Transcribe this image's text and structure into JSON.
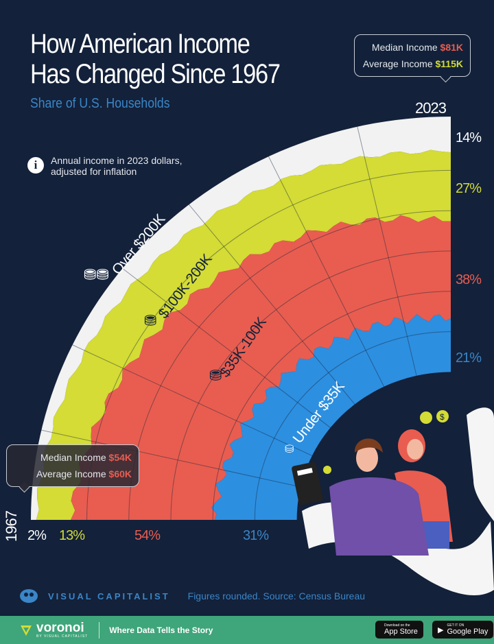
{
  "header": {
    "title_line1": "How American Income",
    "title_line2": "Has Changed Since 1967",
    "subtitle": "Share of U.S. Households",
    "note": "Annual income in 2023 dollars, adjusted for inflation",
    "note_icon": "info-icon"
  },
  "callouts": {
    "y2023": {
      "median_label": "Median Income",
      "median_value": "$81K",
      "average_label": "Average Income",
      "average_value": "$115K"
    },
    "y1967": {
      "median_label": "Median Income",
      "median_value": "$54K",
      "average_label": "Average Income",
      "average_value": "$60K"
    }
  },
  "colors": {
    "background": "#13213a",
    "over200": "#f2f2f2",
    "k100_200": "#d4dc35",
    "k35_100": "#e85d50",
    "under35": "#2d8fe0",
    "accent_blue": "#3a86c8",
    "footer": "#3fa57a"
  },
  "chart_data": {
    "type": "area",
    "layout": "radial stacked (quarter circle), 1967 at left, 2023 at top",
    "categories": [
      1967,
      2023
    ],
    "category_labels": [
      "1967",
      "2023"
    ],
    "series": [
      {
        "name": "Over $200K",
        "values": [
          2,
          14
        ],
        "labels": [
          "2%",
          "14%"
        ],
        "color": "#f2f2f2"
      },
      {
        "name": "$100K-200K",
        "values": [
          13,
          27
        ],
        "labels": [
          "13%",
          "27%"
        ],
        "color": "#d4dc35"
      },
      {
        "name": "$35K-100K",
        "values": [
          54,
          38
        ],
        "labels": [
          "54%",
          "38%"
        ],
        "color": "#e85d50"
      },
      {
        "name": "Under $35K",
        "values": [
          31,
          21
        ],
        "labels": [
          "31%",
          "21%"
        ],
        "color": "#2d8fe0"
      }
    ],
    "band_labels": {
      "over200_a": "Over ",
      "over200_b": "$200K",
      "k100_200": "$100K-200K",
      "k35_100": "$35K-100K",
      "under35_a": "Under ",
      "under35_b": "$35K"
    },
    "unit": "%"
  },
  "footer": {
    "brand": "VISUAL CAPITALIST",
    "source": "Figures rounded. Source: Census Bureau",
    "voronoi": "voronoi",
    "voronoi_sub": "BY VISUAL CAPITALIST",
    "tagline": "Where Data Tells the Story",
    "app_store": "App Store",
    "app_store_small": "Download on the",
    "google_play": "Google Play",
    "google_play_small": "GET IT ON"
  }
}
